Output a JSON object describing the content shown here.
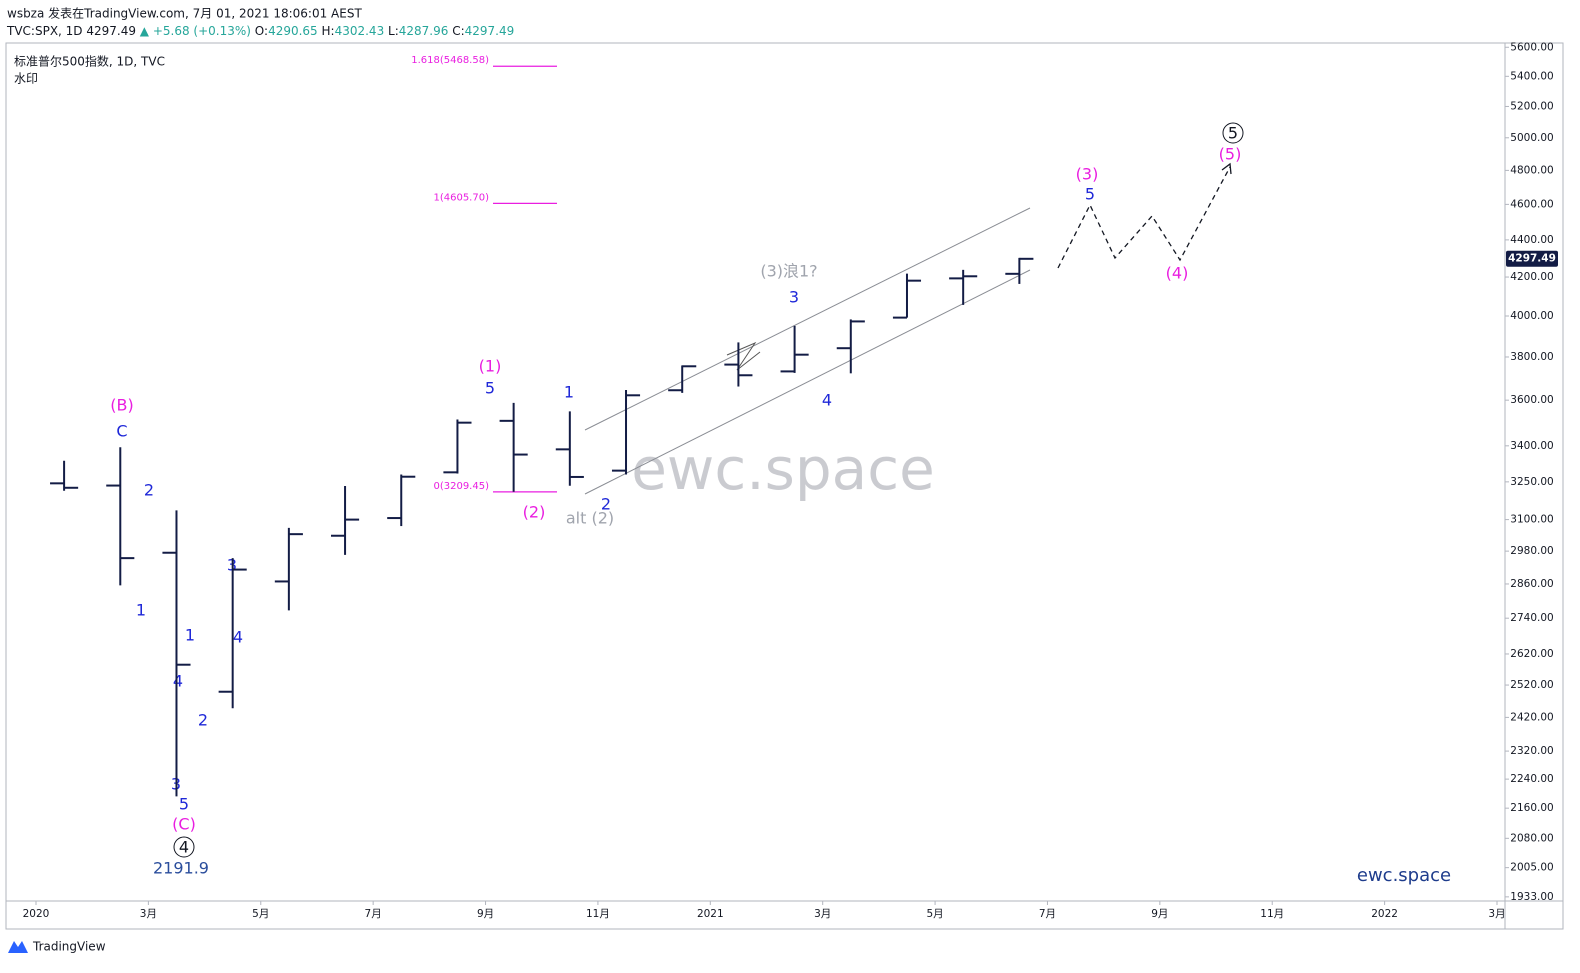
{
  "header": {
    "line1": "wsbza 发表在TradingView.com, 7月 01, 2021 18:06:01 AEST",
    "line2": [
      {
        "text": "TVC:SPX, 1D 4297.49 ",
        "color": "#131722"
      },
      {
        "text": "▲ +5.68 (+0.13%) ",
        "color": "#26a69a"
      },
      {
        "text": "O:",
        "color": "#131722"
      },
      {
        "text": "4290.65 ",
        "color": "#26a69a"
      },
      {
        "text": "H:",
        "color": "#131722"
      },
      {
        "text": "4302.43 ",
        "color": "#26a69a"
      },
      {
        "text": "L:",
        "color": "#131722"
      },
      {
        "text": "4287.96 ",
        "color": "#26a69a"
      },
      {
        "text": "C:",
        "color": "#131722"
      },
      {
        "text": "4297.49",
        "color": "#26a69a"
      }
    ]
  },
  "legend": {
    "symbol": "标准普尔500指数, 1D, TVC",
    "sub": "水印"
  },
  "watermark": "ewc.space",
  "brand": "ewc.space",
  "footer": "TradingView",
  "chart_data": {
    "type": "ohlc",
    "color": "#131c45",
    "log_scale": true,
    "x": [
      "2020-01",
      "2020-02",
      "2020-03",
      "2020-04",
      "2020-05",
      "2020-06",
      "2020-07",
      "2020-08",
      "2020-09",
      "2020-10",
      "2020-11",
      "2020-12",
      "2021-01",
      "2021-02",
      "2021-03",
      "2021-04",
      "2021-05",
      "2021-06"
    ],
    "open": [
      3244,
      3235,
      2974,
      2499,
      2869,
      3038,
      3106,
      3289,
      3508,
      3385,
      3296,
      3645,
      3764,
      3732,
      3842,
      3992,
      4193,
      4217
    ],
    "high": [
      3337,
      3394,
      3136,
      2954,
      3068,
      3233,
      3280,
      3514,
      3588,
      3550,
      3646,
      3760,
      3870,
      3951,
      3983,
      4218,
      4238,
      4302
    ],
    "low": [
      3214,
      2855,
      2192,
      2448,
      2767,
      2966,
      3075,
      3284,
      3210,
      3234,
      3280,
      3633,
      3662,
      3725,
      3723,
      3992,
      4056,
      4164
    ],
    "close": [
      3226,
      2954,
      2585,
      2912,
      3044,
      3100,
      3271,
      3500,
      3363,
      3270,
      3622,
      3756,
      3714,
      3811,
      3973,
      4181,
      4204,
      4297
    ],
    "last_price": {
      "value": 4297.49,
      "label": "4297.49"
    },
    "xlim": [
      "2020-01",
      "2022-03"
    ],
    "xticks": [
      {
        "value": "2020-01",
        "label": "2020"
      },
      {
        "value": "2020-03",
        "label": "3月"
      },
      {
        "value": "2020-05",
        "label": "5月"
      },
      {
        "value": "2020-07",
        "label": "7月"
      },
      {
        "value": "2020-09",
        "label": "9月"
      },
      {
        "value": "2020-11",
        "label": "11月"
      },
      {
        "value": "2021-01",
        "label": "2021"
      },
      {
        "value": "2021-03",
        "label": "3月"
      },
      {
        "value": "2021-05",
        "label": "5月"
      },
      {
        "value": "2021-07",
        "label": "7月"
      },
      {
        "value": "2021-09",
        "label": "9月"
      },
      {
        "value": "2021-11",
        "label": "11月"
      },
      {
        "value": "2022-01",
        "label": "2022"
      },
      {
        "value": "2022-03",
        "label": "3月"
      }
    ],
    "ylim": [
      1923,
      5630
    ],
    "yticks": [
      {
        "value": 5600,
        "label": "5600.00"
      },
      {
        "value": 5400,
        "label": "5400.00"
      },
      {
        "value": 5200,
        "label": "5200.00"
      },
      {
        "value": 5000,
        "label": "5000.00"
      },
      {
        "value": 4800,
        "label": "4800.00"
      },
      {
        "value": 4600,
        "label": "4600.00"
      },
      {
        "value": 4400,
        "label": "4400.00"
      },
      {
        "value": 4200,
        "label": "4200.00"
      },
      {
        "value": 4000,
        "label": "4000.00"
      },
      {
        "value": 3800,
        "label": "3800.00"
      },
      {
        "value": 3600,
        "label": "3600.00"
      },
      {
        "value": 3400,
        "label": "3400.00"
      },
      {
        "value": 3250,
        "label": "3250.00"
      },
      {
        "value": 3100,
        "label": "3100.00"
      },
      {
        "value": 2980,
        "label": "2980.00"
      },
      {
        "value": 2860,
        "label": "2860.00"
      },
      {
        "value": 2740,
        "label": "2740.00"
      },
      {
        "value": 2620,
        "label": "2620.00"
      },
      {
        "value": 2520,
        "label": "2520.00"
      },
      {
        "value": 2420,
        "label": "2420.00"
      },
      {
        "value": 2320,
        "label": "2320.00"
      },
      {
        "value": 2240,
        "label": "2240.00"
      },
      {
        "value": 2160,
        "label": "2160.00"
      },
      {
        "value": 2080,
        "label": "2080.00"
      },
      {
        "value": 2005,
        "label": "2005.00"
      },
      {
        "value": 1933,
        "label": "1933.00"
      }
    ],
    "fib_levels": [
      {
        "value": 5468.58,
        "label": "1.618(5468.58)"
      },
      {
        "value": 4605.7,
        "label": "1(4605.70)"
      },
      {
        "value": 3209.45,
        "label": "0(3209.45)"
      }
    ],
    "fib_color": "#e91ee0",
    "annotations": [
      "(B)",
      "C",
      "2",
      "1",
      "3",
      "4",
      "1",
      "4",
      "2",
      "3",
      "5",
      "(C)",
      "4",
      "2191.9",
      "(1)",
      "5",
      "(2)",
      "1",
      "2",
      "alt (2)",
      "(3)浪1?",
      "3",
      "4",
      "(3)",
      "5",
      "(4)",
      "5",
      "(5)"
    ]
  }
}
